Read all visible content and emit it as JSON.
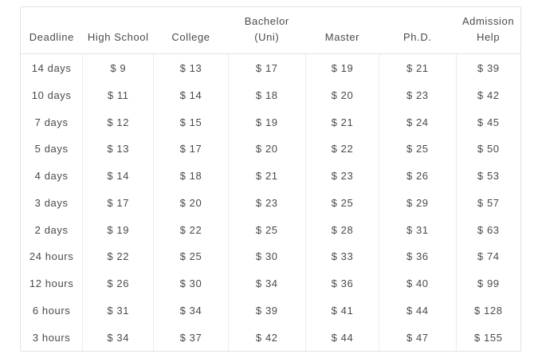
{
  "chart_data": {
    "type": "table",
    "title": "",
    "columns": [
      {
        "id": "deadline",
        "label": "Deadline",
        "lines": [
          "Deadline"
        ]
      },
      {
        "id": "high-school",
        "label": "High School",
        "lines": [
          "High School"
        ]
      },
      {
        "id": "college",
        "label": "College",
        "lines": [
          "College"
        ]
      },
      {
        "id": "bachelor-uni",
        "label": "Bachelor (Uni)",
        "lines": [
          "Bachelor",
          "(Uni)"
        ]
      },
      {
        "id": "master",
        "label": "Master",
        "lines": [
          "Master"
        ]
      },
      {
        "id": "phd",
        "label": "Ph.D.",
        "lines": [
          "Ph.D."
        ]
      },
      {
        "id": "admission-help",
        "label": "Admission Help",
        "lines": [
          "Admission",
          "Help"
        ]
      }
    ],
    "rows": [
      {
        "cells": [
          "14 days",
          "$ 9",
          "$ 13",
          "$ 17",
          "$ 19",
          "$ 21",
          "$ 39"
        ]
      },
      {
        "cells": [
          "10 days",
          "$ 11",
          "$ 14",
          "$ 18",
          "$ 20",
          "$ 23",
          "$ 42"
        ]
      },
      {
        "cells": [
          "7 days",
          "$ 12",
          "$ 15",
          "$ 19",
          "$ 21",
          "$ 24",
          "$ 45"
        ]
      },
      {
        "cells": [
          "5 days",
          "$ 13",
          "$ 17",
          "$ 20",
          "$ 22",
          "$ 25",
          "$ 50"
        ]
      },
      {
        "cells": [
          "4 days",
          "$ 14",
          "$ 18",
          "$ 21",
          "$ 23",
          "$ 26",
          "$ 53"
        ]
      },
      {
        "cells": [
          "3 days",
          "$ 17",
          "$ 20",
          "$ 23",
          "$ 25",
          "$ 29",
          "$ 57"
        ]
      },
      {
        "cells": [
          "2 days",
          "$ 19",
          "$ 22",
          "$ 25",
          "$ 28",
          "$ 31",
          "$ 63"
        ]
      },
      {
        "cells": [
          "24 hours",
          "$ 22",
          "$ 25",
          "$ 30",
          "$ 33",
          "$ 36",
          "$ 74"
        ]
      },
      {
        "cells": [
          "12 hours",
          "$ 26",
          "$ 30",
          "$ 34",
          "$ 36",
          "$ 40",
          "$ 99"
        ]
      },
      {
        "cells": [
          "6 hours",
          "$ 31",
          "$ 34",
          "$ 39",
          "$ 41",
          "$ 44",
          "$ 128"
        ]
      },
      {
        "cells": [
          "3 hours",
          "$ 34",
          "$ 37",
          "$ 42",
          "$ 44",
          "$ 47",
          "$ 155"
        ]
      }
    ],
    "column_width_percents": [
      12.4,
      14.2,
      14.9,
      15.5,
      14.7,
      15.4,
      12.9
    ],
    "layout": {
      "grid": "vertical-separators-body-only",
      "header_rule": true
    }
  },
  "colors": {
    "background": "#ffffff",
    "outer_border": "#e2e2e2",
    "header_rule": "#e2e2e2",
    "column_separator": "#ececec",
    "text": "#4a4a4a"
  }
}
